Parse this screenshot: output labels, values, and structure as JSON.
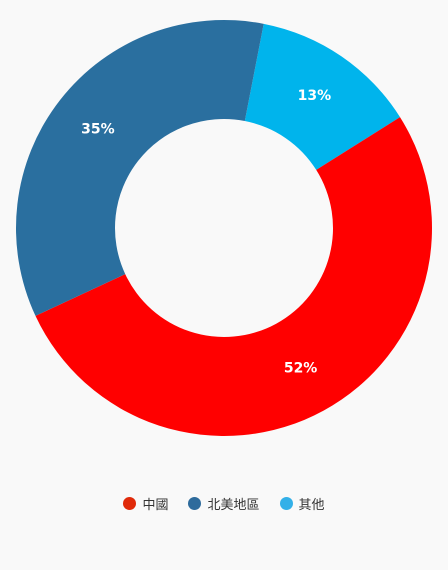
{
  "chart_data": {
    "type": "pie",
    "variant": "donut",
    "start_angle_deg": 11,
    "slices": [
      {
        "name": "其他",
        "value": 13,
        "label": "13%",
        "color": "#00b4ec",
        "legend_color": "#33b0e8"
      },
      {
        "name": "中國",
        "value": 52,
        "label": "52%",
        "color": "#ff0000",
        "legend_color": "#e02a0a"
      },
      {
        "name": "北美地區",
        "value": 35,
        "label": "35%",
        "color": "#2a6f9f",
        "legend_color": "#2e6b9c"
      }
    ],
    "legend": {
      "position": "bottom",
      "items": [
        {
          "name": "中國",
          "color": "#e02a0a"
        },
        {
          "name": "北美地區",
          "color": "#2e6b9c"
        },
        {
          "name": "其他",
          "color": "#33b0e8"
        }
      ]
    }
  }
}
